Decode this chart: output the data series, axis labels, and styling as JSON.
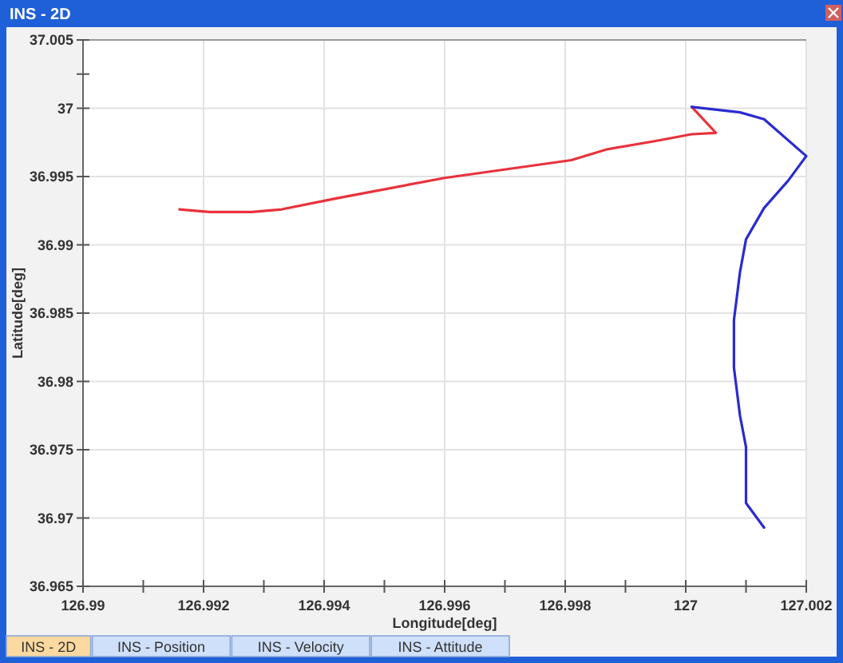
{
  "chart_data": {
    "type": "line",
    "title": "INS - 2D",
    "xlabel": "Longitude[deg]",
    "ylabel": "Latitude[deg]",
    "xlim": [
      126.99,
      127.002
    ],
    "xticks": [
      126.99,
      {
        "value": 126.991,
        "label": null
      },
      126.992,
      {
        "value": 126.993,
        "label": null
      },
      126.994,
      {
        "value": 126.995,
        "label": null
      },
      126.996,
      {
        "value": 126.997,
        "label": null
      },
      126.998,
      {
        "value": 126.999,
        "label": null
      },
      127,
      {
        "value": 127.001,
        "label": null
      },
      127.002
    ],
    "ylim": [
      36.965,
      37.005
    ],
    "yticks": [
      36.965,
      36.97,
      36.975,
      36.98,
      36.985,
      36.99,
      36.995,
      37,
      {
        "value": 37.0025,
        "label": null
      },
      37.005
    ],
    "grid": true,
    "marker": "none",
    "line_style": "solid",
    "series": [
      {
        "color": "#e8323c",
        "x": [
          126.9916,
          126.9921,
          126.9928,
          126.9933,
          126.9942,
          126.996,
          126.9981,
          126.9987,
          126.9995,
          127.0001,
          127.0005,
          127.0001
        ],
        "values": [
          36.9926,
          36.9924,
          36.9924,
          36.9926,
          36.9934,
          36.9949,
          36.9962,
          36.997,
          36.9976,
          36.9981,
          36.9982,
          37.0001
        ]
      },
      {
        "color": "#2b2bd0",
        "x": [
          127.0001,
          127.0009,
          127.0013,
          127.002,
          127.0017,
          127.0013,
          127.001,
          127.0009,
          127.0008,
          127.0008,
          127.0009,
          127.001,
          127.001,
          127.001,
          127.0012,
          127.0013
        ],
        "values": [
          37.0001,
          36.9997,
          36.9992,
          36.9965,
          36.9947,
          36.9927,
          36.9904,
          36.988,
          36.9845,
          36.981,
          36.9775,
          36.9752,
          36.9728,
          36.9711,
          36.9699,
          36.9693
        ]
      }
    ],
    "annotations": [
      "INS - 2D",
      "INS - Position",
      "INS - Velocity",
      "INS - Attitude"
    ]
  }
}
